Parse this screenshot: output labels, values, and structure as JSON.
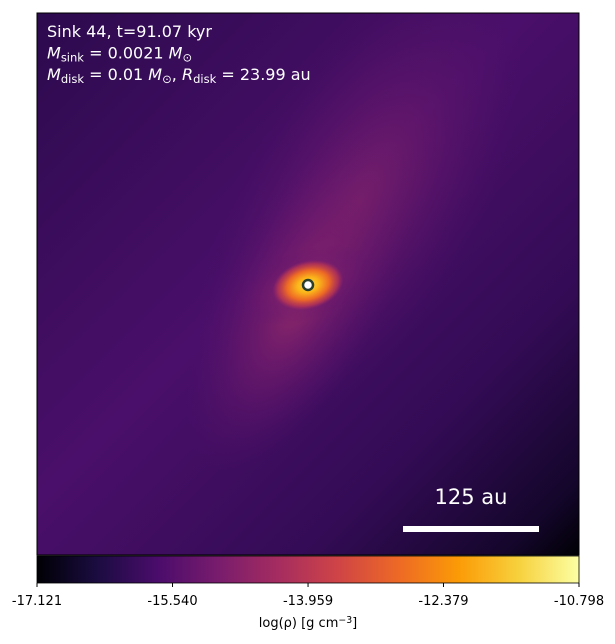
{
  "chart_data": {
    "type": "density-map",
    "annotations": [
      [
        {
          "text": "Sink 44, t=91.07 kyr"
        }
      ],
      [
        {
          "text": "M",
          "italic": true
        },
        {
          "text": "sink",
          "sub": true
        },
        {
          "text": " = 0.0021 "
        },
        {
          "text": "M",
          "italic": true
        },
        {
          "text": "⊙",
          "sub": true
        }
      ],
      [
        {
          "text": "M",
          "italic": true
        },
        {
          "text": "disk",
          "sub": true
        },
        {
          "text": " = 0.01 "
        },
        {
          "text": "M",
          "italic": true
        },
        {
          "text": "⊙",
          "sub": true
        },
        {
          "text": ", "
        },
        {
          "text": "R",
          "italic": true
        },
        {
          "text": "disk",
          "sub": true
        },
        {
          "text": " = 23.99 au"
        }
      ]
    ],
    "scale_bar_label": "125 au",
    "colormap": "inferno",
    "colorbar": {
      "label": [
        {
          "text": "log(ρ) [g cm"
        },
        {
          "text": "−3",
          "sup": true
        },
        {
          "text": "]"
        }
      ],
      "clim": [
        -17.121,
        -10.798
      ],
      "ticks": [
        {
          "value": -17.121,
          "label": "-17.121"
        },
        {
          "value": -15.54,
          "label": "-15.540"
        },
        {
          "value": -13.959,
          "label": "-13.959"
        },
        {
          "value": -12.379,
          "label": "-12.379"
        },
        {
          "value": -10.798,
          "label": "-10.798"
        }
      ]
    }
  }
}
